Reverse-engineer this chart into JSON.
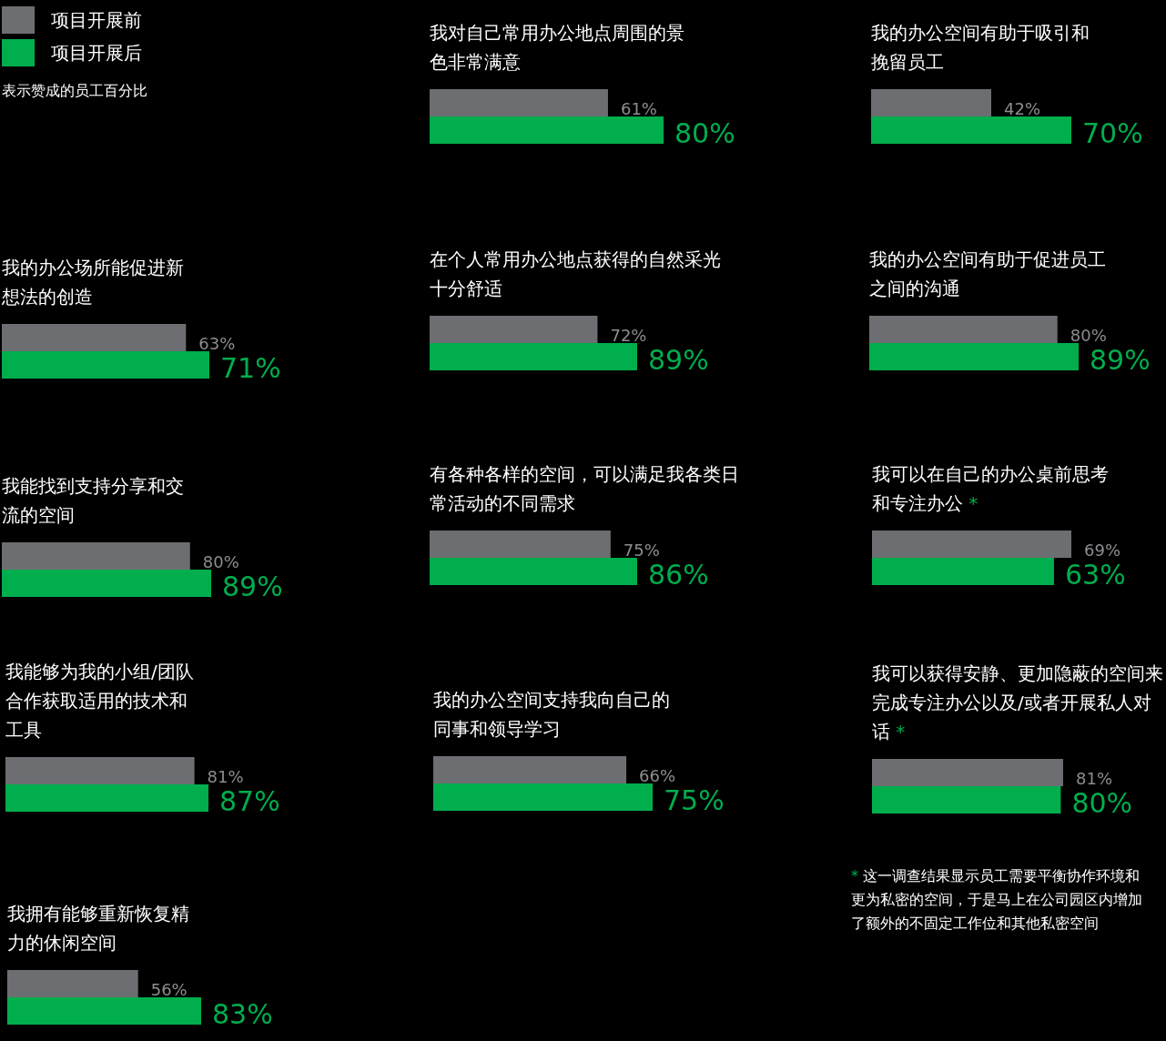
{
  "chart_data": [
    {
      "type": "other",
      "legend": "top left",
      "annotations": [
        "表示赞成的员工百分比"
      ],
      "series": [
        {
          "name": "项目开展前",
          "color": "#6d6e71"
        },
        {
          "name": "项目开展后",
          "color": "#00ae4d"
        }
      ]
    },
    {
      "type": "bar",
      "orientation": "horizontal",
      "title": "我对自己常用办公地点周围的景色非常满意",
      "categories": [
        null
      ],
      "series": [
        {
          "color": "#6d6e71",
          "values": [
            61
          ],
          "value_labels": [
            "61%"
          ]
        },
        {
          "color": "#00ae4d",
          "values": [
            80
          ],
          "value_labels": [
            "80%"
          ]
        }
      ]
    },
    {
      "type": "bar",
      "orientation": "horizontal",
      "title": "我的办公空间有助于吸引和挽留员工",
      "categories": [
        null
      ],
      "series": [
        {
          "color": "#6d6e71",
          "values": [
            42
          ],
          "value_labels": [
            "42%"
          ]
        },
        {
          "color": "#00ae4d",
          "values": [
            70
          ],
          "value_labels": [
            "70%"
          ]
        }
      ]
    },
    {
      "type": "bar",
      "orientation": "horizontal",
      "title": "我的办公场所能促进新想法的创造",
      "categories": [
        null
      ],
      "series": [
        {
          "color": "#6d6e71",
          "values": [
            63
          ],
          "value_labels": [
            "63%"
          ]
        },
        {
          "color": "#00ae4d",
          "values": [
            71
          ],
          "value_labels": [
            "71%"
          ]
        }
      ]
    },
    {
      "type": "bar",
      "orientation": "horizontal",
      "title": "在个人常用办公地点获得的自然采光十分舒适",
      "categories": [
        null
      ],
      "series": [
        {
          "color": "#6d6e71",
          "values": [
            72
          ],
          "value_labels": [
            "72%"
          ]
        },
        {
          "color": "#00ae4d",
          "values": [
            89
          ],
          "value_labels": [
            "89%"
          ]
        }
      ]
    },
    {
      "type": "bar",
      "orientation": "horizontal",
      "title": "我的办公空间有助于促进员工之间的沟通",
      "categories": [
        null
      ],
      "series": [
        {
          "color": "#6d6e71",
          "values": [
            80
          ],
          "value_labels": [
            "80%"
          ]
        },
        {
          "color": "#00ae4d",
          "values": [
            89
          ],
          "value_labels": [
            "89%"
          ]
        }
      ]
    },
    {
      "type": "bar",
      "orientation": "horizontal",
      "title": "我能找到支持分享和交流的空间",
      "categories": [
        null
      ],
      "series": [
        {
          "color": "#6d6e71",
          "values": [
            80
          ],
          "value_labels": [
            "80%"
          ]
        },
        {
          "color": "#00ae4d",
          "values": [
            89
          ],
          "value_labels": [
            "89%"
          ]
        }
      ]
    },
    {
      "type": "bar",
      "orientation": "horizontal",
      "title": "有各种各样的空间，可以满足我各类日常活动的不同需求",
      "categories": [
        null
      ],
      "series": [
        {
          "color": "#6d6e71",
          "values": [
            75
          ],
          "value_labels": [
            "75%"
          ]
        },
        {
          "color": "#00ae4d",
          "values": [
            86
          ],
          "value_labels": [
            "86%"
          ]
        }
      ]
    },
    {
      "type": "bar",
      "orientation": "horizontal",
      "title": "我可以在自己的办公桌前思考和专注办公 *",
      "categories": [
        null
      ],
      "series": [
        {
          "color": "#6d6e71",
          "values": [
            69
          ],
          "value_labels": [
            "69%"
          ]
        },
        {
          "color": "#00ae4d",
          "values": [
            63
          ],
          "value_labels": [
            "63%"
          ]
        }
      ]
    },
    {
      "type": "bar",
      "orientation": "horizontal",
      "title": "我能够为我的小组/团队合作获取适用的技术和工具",
      "categories": [
        null
      ],
      "series": [
        {
          "color": "#6d6e71",
          "values": [
            81
          ],
          "value_labels": [
            "81%"
          ]
        },
        {
          "color": "#00ae4d",
          "values": [
            87
          ],
          "value_labels": [
            "87%"
          ]
        }
      ]
    },
    {
      "type": "bar",
      "orientation": "horizontal",
      "title": "我的办公空间支持我向自己的同事和领导学习",
      "categories": [
        null
      ],
      "series": [
        {
          "color": "#6d6e71",
          "values": [
            66
          ],
          "value_labels": [
            "66%"
          ]
        },
        {
          "color": "#00ae4d",
          "values": [
            75
          ],
          "value_labels": [
            "75%"
          ]
        }
      ]
    },
    {
      "type": "bar",
      "orientation": "horizontal",
      "title": "我可以获得安静、更加隐蔽的空间来完成专注办公以及/或者开展私人对话 *",
      "categories": [
        null
      ],
      "annotations": [
        "* 这一调查结果显示员工需要平衡协作环境和更为私密的空间，于是马上在公司园区内增加了额外的不固定工作位和其他私密空间"
      ],
      "series": [
        {
          "color": "#6d6e71",
          "values": [
            81
          ],
          "value_labels": [
            "81%"
          ]
        },
        {
          "color": "#00ae4d",
          "values": [
            80
          ],
          "value_labels": [
            "80%"
          ]
        }
      ]
    },
    {
      "type": "bar",
      "orientation": "horizontal",
      "title": "我拥有能够重新恢复精力的休闲空间",
      "categories": [
        null
      ],
      "series": [
        {
          "color": "#6d6e71",
          "values": [
            56
          ],
          "value_labels": [
            "56%"
          ]
        },
        {
          "color": "#00ae4d",
          "values": [
            83
          ],
          "value_labels": [
            "83%"
          ]
        }
      ]
    }
  ]
}
